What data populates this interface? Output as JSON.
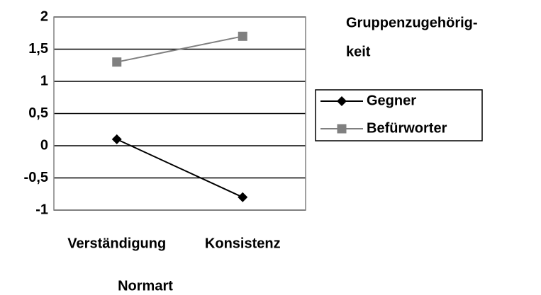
{
  "chart_data": {
    "type": "line",
    "x_label": "Normart",
    "legend_title": [
      "Gruppenzugehörig-",
      "keit"
    ],
    "categories": [
      "Verständigung",
      "Konsistenz"
    ],
    "series": [
      {
        "name": "Gegner",
        "color": "#000000",
        "marker": "diamond",
        "values": [
          0.1,
          -0.8
        ]
      },
      {
        "name": "Befürworter",
        "color": "#808080",
        "marker": "square",
        "values": [
          1.3,
          1.7
        ]
      }
    ],
    "ylim": [
      -1,
      2
    ],
    "yticks": [
      -1,
      {
        "value": -0.5,
        "label": "-0,5"
      },
      0,
      {
        "value": 0.5,
        "label": "0,5"
      },
      1,
      {
        "value": 1.5,
        "label": "1,5"
      },
      2
    ],
    "grid": true
  }
}
